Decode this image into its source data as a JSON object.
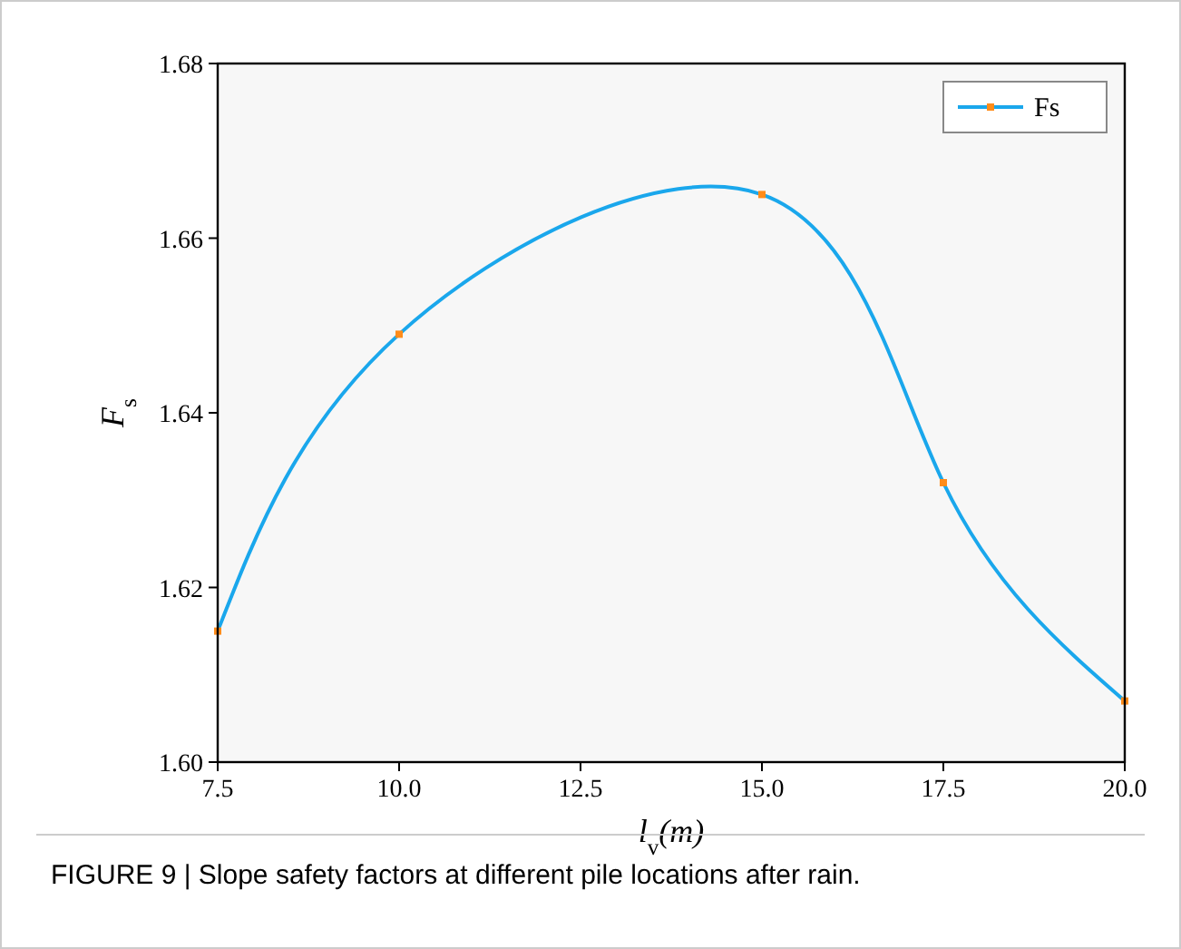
{
  "chart_data": {
    "type": "line",
    "xlabel": "l$_{v}$(m)",
    "ylabel": "F$_{s}$",
    "x": [
      7.5,
      10,
      15,
      17.5,
      20
    ],
    "series": [
      {
        "name": "Fs",
        "color": "#1aa7ec",
        "values": [
          1.615,
          1.649,
          1.665,
          1.632,
          1.607
        ]
      }
    ],
    "xlim": [
      7.5,
      20
    ],
    "xticks": [
      {
        "value": 7.5,
        "label": "7.5"
      },
      {
        "value": 10,
        "label": "10.0"
      },
      {
        "value": 12.5,
        "label": "12.5"
      },
      {
        "value": 15,
        "label": "15.0"
      },
      {
        "value": 17.5,
        "label": "17.5"
      },
      {
        "value": 20,
        "label": "20.0"
      }
    ],
    "ylim": [
      1.6,
      1.68
    ],
    "yticks": [
      {
        "value": 1.6,
        "label": "1.60"
      },
      {
        "value": 1.62,
        "label": "1.62"
      },
      {
        "value": 1.64,
        "label": "1.64"
      },
      {
        "value": 1.66,
        "label": "1.66"
      },
      {
        "value": 1.68,
        "label": "1.68"
      }
    ],
    "marker": "square",
    "legend": "top right",
    "grid": false,
    "annotations": [
      "FIGURE 9 | Slope safety factors at different pile locations after rain."
    ]
  }
}
